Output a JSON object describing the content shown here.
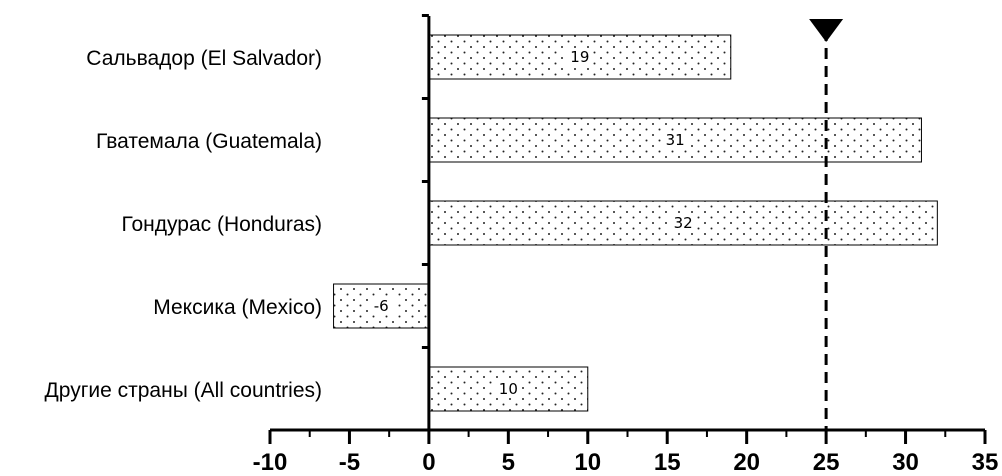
{
  "chart_data": {
    "type": "bar",
    "orientation": "horizontal",
    "categories": [
      "Сальвадор (El Salvador)",
      "Гватемала (Guatemala)",
      "Гондурас (Honduras)",
      "Мексика (Mexico)",
      "Другие страны (All countries)"
    ],
    "values": [
      19,
      31,
      32,
      -6,
      10
    ],
    "data_labels": [
      "19",
      "31",
      "32",
      "-6",
      "10"
    ],
    "xlim": [
      -10,
      35
    ],
    "xticks": [
      -10,
      -5,
      0,
      5,
      10,
      15,
      20,
      25,
      30,
      35
    ],
    "xtick_labels": [
      "-10",
      "-5",
      "0",
      "5",
      "10",
      "15",
      "20",
      "25",
      "30",
      "35"
    ],
    "reference_line": {
      "x": 25,
      "style": "dashed",
      "marker": "downward-triangle"
    },
    "bar_fill": "dotted",
    "grid": false,
    "title": "",
    "xlabel": "",
    "ylabel": ""
  }
}
